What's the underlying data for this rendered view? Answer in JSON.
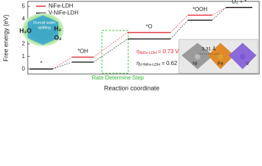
{
  "chart_data": {
    "type": "step",
    "ylabel": "Free energy (eV)",
    "xlabel": "Reaction coordinate",
    "categories": [
      "*",
      "*OH",
      "*O",
      "*OOH",
      "O₂ + *"
    ],
    "series": [
      {
        "name": "NiFe-LDH",
        "color": "#e0202a",
        "values": [
          0,
          0.95,
          2.91,
          4.3,
          4.92
        ]
      },
      {
        "name": "V-NiFe-LDH",
        "color": "#111111",
        "values": [
          0,
          0.55,
          2.4,
          3.9,
          4.92
        ]
      }
    ],
    "ylim": [
      -0.4,
      5.4
    ],
    "yticks": [
      0,
      1,
      2,
      3,
      4,
      5
    ],
    "annotations": {
      "rds": "Rate Determine Step",
      "eta_nife": {
        "symbol": "η",
        "sub": "NiFe-LDH",
        "text": "= 0.73 V"
      },
      "eta_vnife": {
        "symbol": "η",
        "sub": "V-NiFe-LDH",
        "text": "= 0.62 V"
      },
      "inset_water": {
        "title1": "Overall water",
        "title2": "splitting",
        "h2o": "H₂O",
        "h2": "H₂",
        "o2": "O₂"
      },
      "inset_structure": {
        "distance": "3.31 Å",
        "ni": "Ni",
        "fe": "Fe",
        "v": "V"
      }
    }
  }
}
